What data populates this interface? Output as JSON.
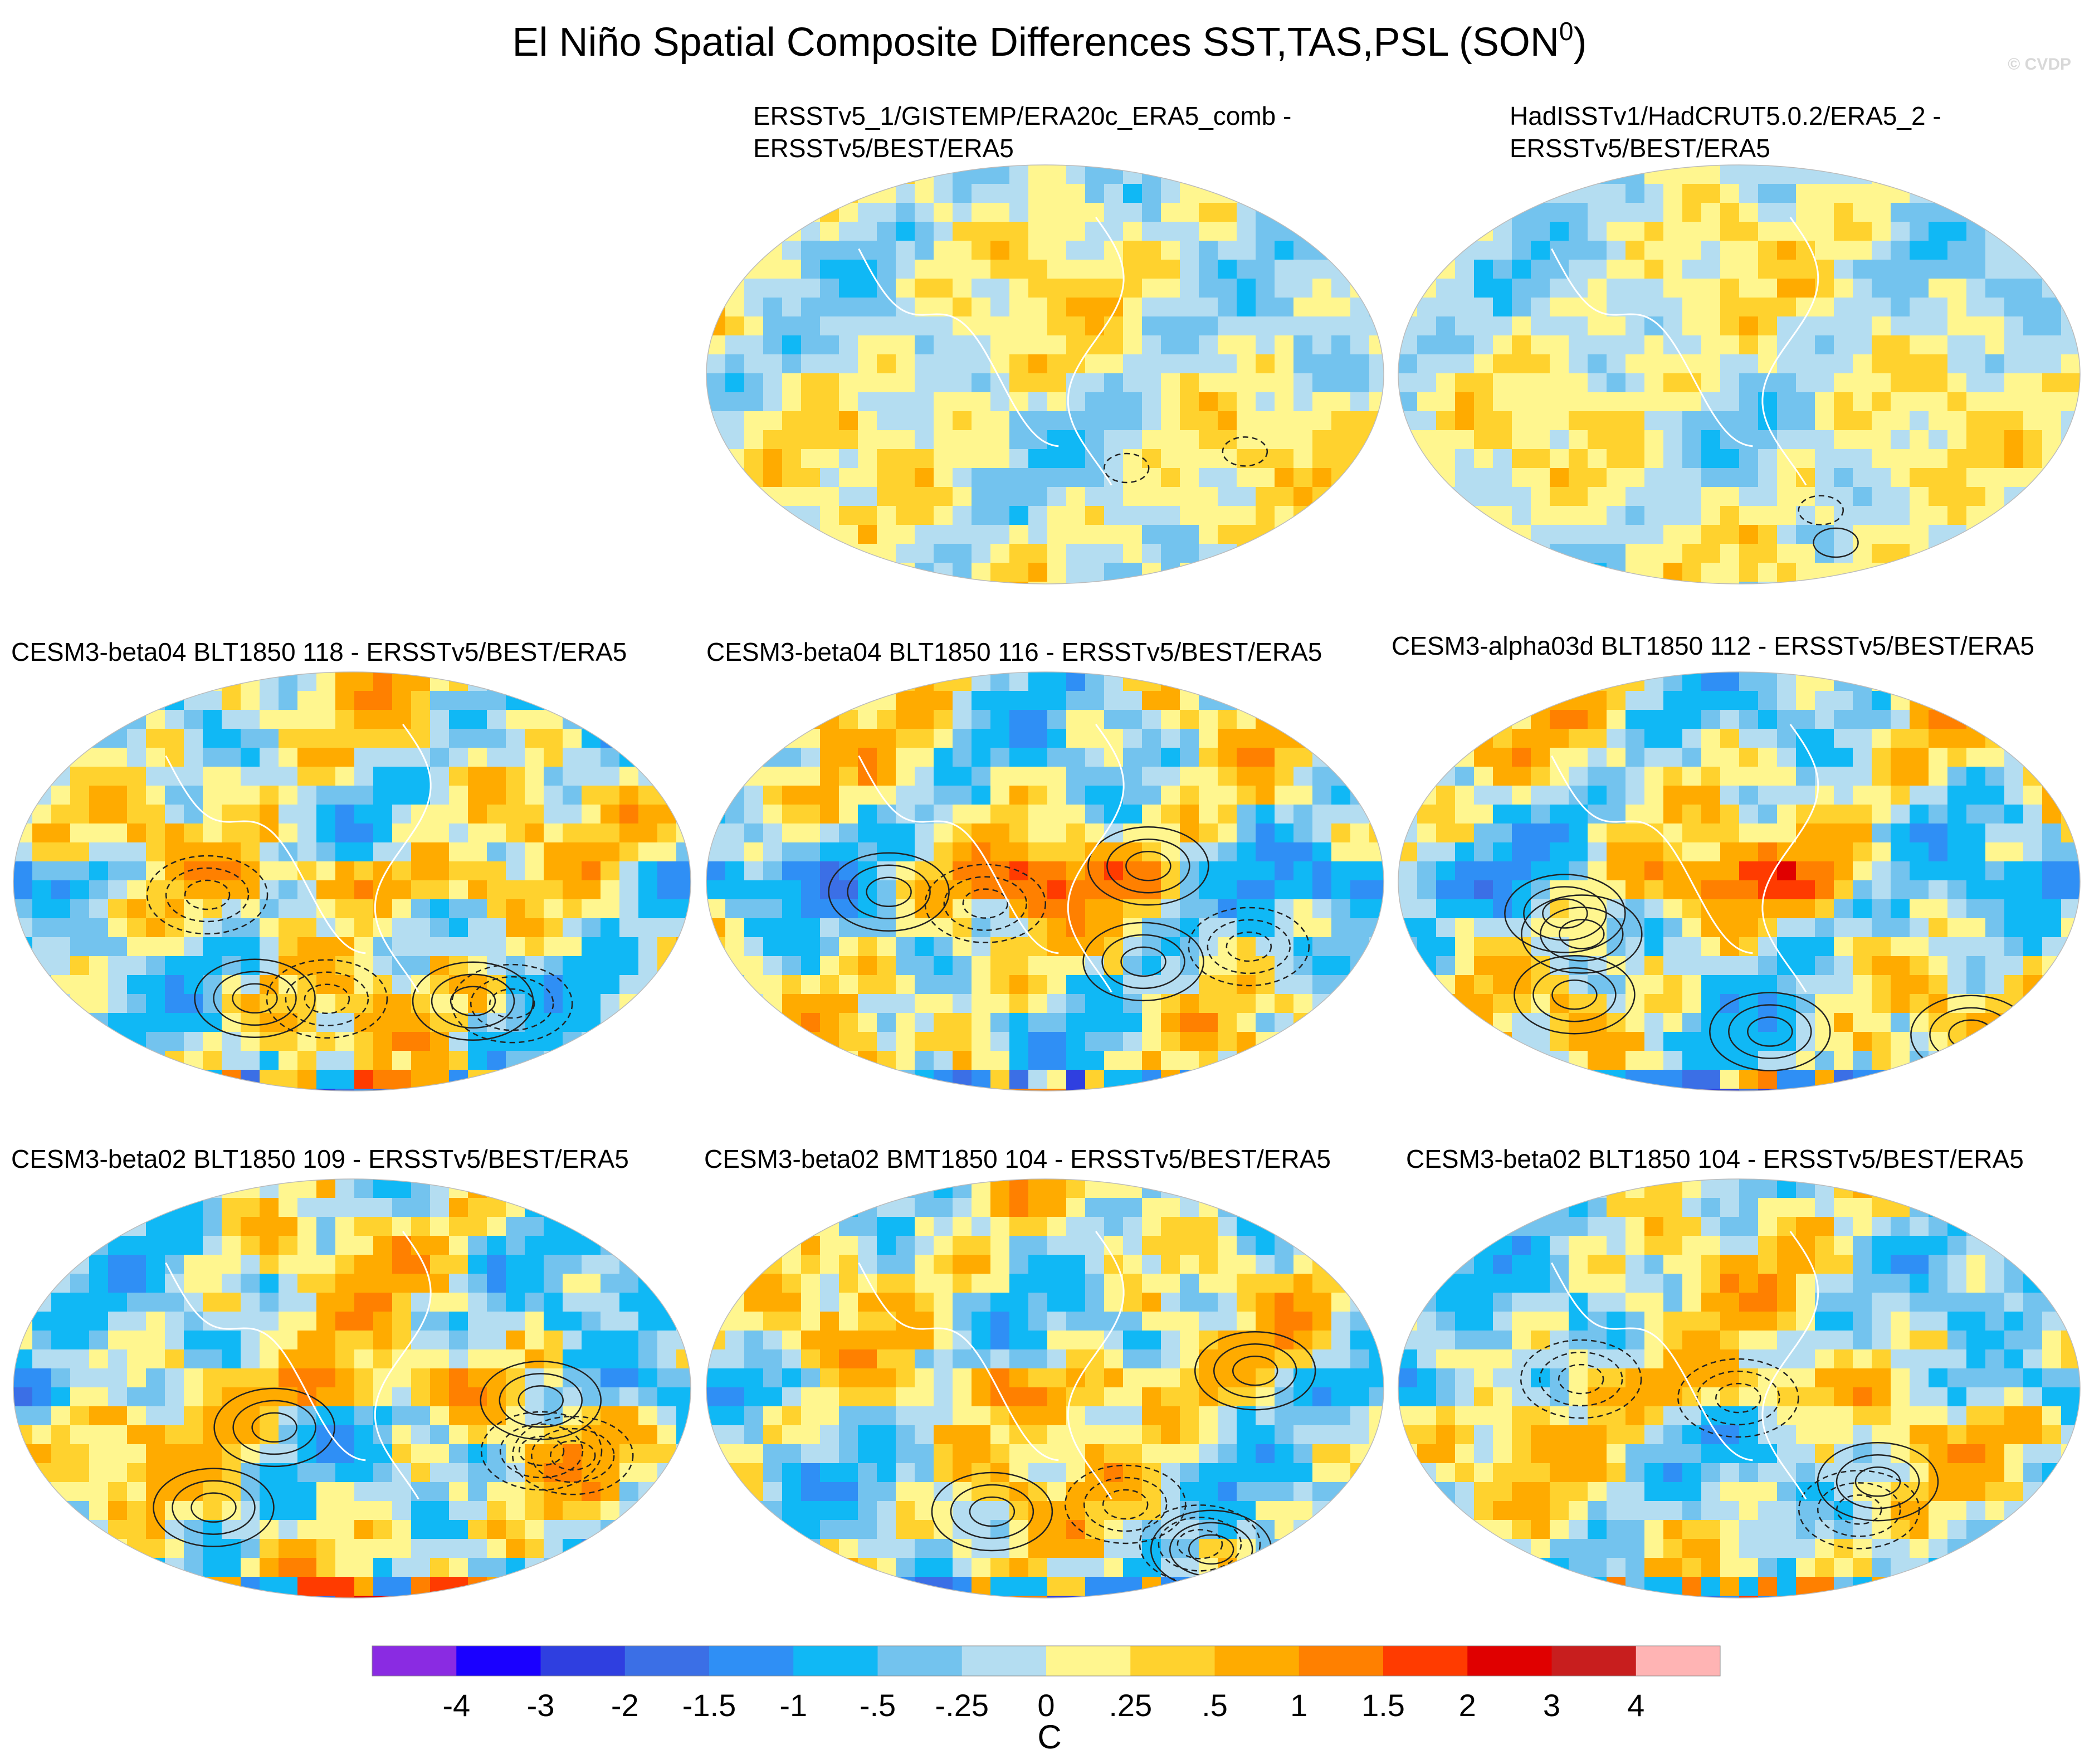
{
  "title": "El Niño Spatial Composite Differences SST,TAS,PSL (SON",
  "title_sup": "0",
  "title_close": ")",
  "watermark": "© CVDP",
  "panels": [
    {
      "line1": "ERSSTv5_1/GISTEMP/ERA20c_ERA5_comb -",
      "line2": "ERSSTv5/BEST/ERA5",
      "strength": 0.2,
      "seed": 11
    },
    {
      "line1": "HadISSTv1/HadCRUT5.0.2/ERA5_2 -",
      "line2": "ERSSTv5/BEST/ERA5",
      "strength": 0.15,
      "seed": 23
    },
    {
      "line1": "CESM3-beta04 BLT1850 118 - ERSSTv5/BEST/ERA5",
      "line2": "",
      "strength": 0.8,
      "seed": 37
    },
    {
      "line1": "CESM3-beta04 BLT1850 116 - ERSSTv5/BEST/ERA5",
      "line2": "",
      "strength": 0.85,
      "seed": 41
    },
    {
      "line1": "CESM3-alpha03d BLT1850 112 - ERSSTv5/BEST/ERA5",
      "line2": "",
      "strength": 0.8,
      "seed": 53
    },
    {
      "line1": "CESM3-beta02 BLT1850 109 - ERSSTv5/BEST/ERA5",
      "line2": "",
      "strength": 0.85,
      "seed": 67
    },
    {
      "line1": "CESM3-beta02 BMT1850 104 - ERSSTv5/BEST/ERA5",
      "line2": "",
      "strength": 0.75,
      "seed": 71
    },
    {
      "line1": "CESM3-beta02 BLT1850 104 - ERSSTv5/BEST/ERA5",
      "line2": "",
      "strength": 0.7,
      "seed": 89
    }
  ],
  "colorbar": {
    "labels": [
      "-4",
      "-3",
      "-2",
      "-1.5",
      "-1",
      "-.5",
      "-.25",
      "0",
      ".25",
      ".5",
      "1",
      "1.5",
      "2",
      "3",
      "4"
    ],
    "colors": [
      "#8a2be2",
      "#1a00ff",
      "#2f3fe0",
      "#3b6fe6",
      "#2f8ff5",
      "#10b8f5",
      "#73c3ee",
      "#b4ddf1",
      "#fff68f",
      "#ffd22e",
      "#ffab00",
      "#ff8000",
      "#ff3b00",
      "#e00000",
      "#c81e1e",
      "#ffb4b4"
    ],
    "unit": "C"
  },
  "chart_data": {
    "type": "heatmap",
    "title": "El Niño Spatial Composite Differences SST,TAS,PSL (SON0)",
    "variable": "SST/TAS shading, PSL contours",
    "projection": "global map (Robinson-like)",
    "levels": [
      -4,
      -3,
      -2,
      -1.5,
      -1,
      -0.5,
      -0.25,
      0,
      0.25,
      0.5,
      1,
      1.5,
      2,
      3,
      4
    ],
    "units": "C",
    "panel_count": 8
  }
}
